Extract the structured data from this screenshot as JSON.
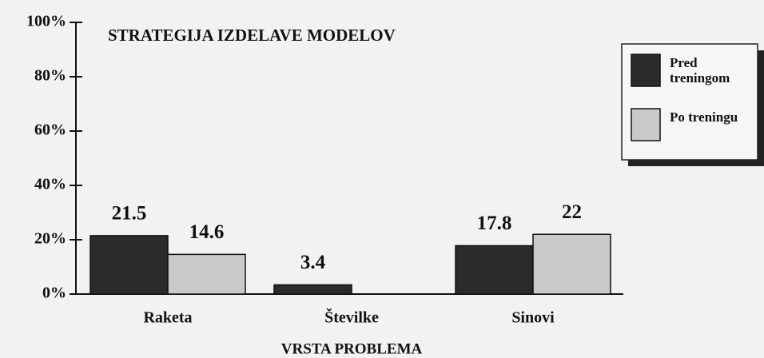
{
  "chart_data": {
    "type": "bar",
    "title": "STRATEGIJA IZDELAVE MODELOV",
    "xlabel": "VRSTA PROBLEMA",
    "categories": [
      "Raketa",
      "Številke",
      "Sinovi"
    ],
    "series": [
      {
        "name": "Pred treningom",
        "color": "#2b2b2b",
        "values": [
          21.5,
          3.4,
          17.8
        ]
      },
      {
        "name": "Po treningu",
        "color": "#c9c9c9",
        "values": [
          14.6,
          null,
          22
        ]
      }
    ],
    "ylim": [
      0,
      100
    ],
    "yticks": [
      {
        "value": 0,
        "label": "0%"
      },
      {
        "value": 20,
        "label": "20%"
      },
      {
        "value": 40,
        "label": "40%"
      },
      {
        "value": 60,
        "label": "60%"
      },
      {
        "value": 80,
        "label": "80%"
      },
      {
        "value": 100,
        "label": "100%"
      }
    ],
    "legend": "upper right"
  }
}
